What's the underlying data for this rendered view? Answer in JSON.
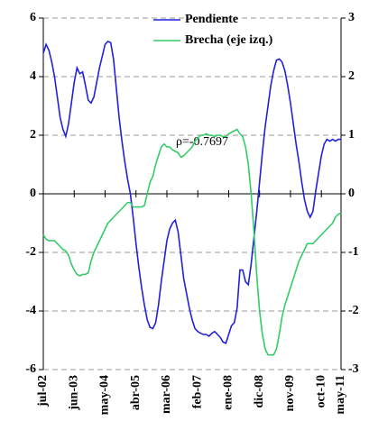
{
  "chart_data": {
    "type": "line",
    "annotation": "ρ=-0.7697",
    "categories": [
      "jul-02",
      null,
      null,
      null,
      null,
      null,
      null,
      null,
      null,
      null,
      null,
      "jun-03",
      null,
      null,
      null,
      null,
      null,
      null,
      null,
      null,
      null,
      null,
      "may-04",
      null,
      null,
      null,
      null,
      null,
      null,
      null,
      null,
      null,
      null,
      "abr-05",
      null,
      null,
      null,
      null,
      null,
      null,
      null,
      null,
      null,
      null,
      "mar-06",
      null,
      null,
      null,
      null,
      null,
      null,
      null,
      null,
      null,
      null,
      "feb-07",
      null,
      null,
      null,
      null,
      null,
      null,
      null,
      null,
      null,
      null,
      "ene-08",
      null,
      null,
      null,
      null,
      null,
      null,
      null,
      null,
      null,
      null,
      "dic-08",
      null,
      null,
      null,
      null,
      null,
      null,
      null,
      null,
      null,
      null,
      "nov-09",
      null,
      null,
      null,
      null,
      null,
      null,
      null,
      null,
      null,
      null,
      "oct-10",
      null,
      null,
      null,
      null,
      null,
      null,
      "may-11"
    ],
    "series": [
      {
        "name": "Pendiente",
        "color": "#2020e0",
        "axis": "y2",
        "values": [
          2.4,
          2.55,
          2.45,
          2.25,
          2,
          1.65,
          1.3,
          1.1,
          0.98,
          1.2,
          1.55,
          1.9,
          2.15,
          2.05,
          2.08,
          1.85,
          1.6,
          1.55,
          1.65,
          1.9,
          2.15,
          2.35,
          2.55,
          2.6,
          2.58,
          2.3,
          1.8,
          1.3,
          0.9,
          0.55,
          0.25,
          0,
          -0.4,
          -0.85,
          -1.25,
          -1.6,
          -1.9,
          -2.15,
          -2.28,
          -2.3,
          -2.2,
          -1.9,
          -1.5,
          -1.15,
          -0.8,
          -0.6,
          -0.5,
          -0.45,
          -0.65,
          -1.05,
          -1.45,
          -1.7,
          -1.95,
          -2.15,
          -2.3,
          -2.35,
          -2.38,
          -2.4,
          -2.4,
          -2.43,
          -2.38,
          -2.35,
          -2.4,
          -2.45,
          -2.53,
          -2.55,
          -2.4,
          -2.25,
          -2.2,
          -1.95,
          -1.3,
          -1.3,
          -1.5,
          -1.55,
          -1.2,
          -0.75,
          -0.3,
          0.2,
          0.7,
          1.15,
          1.5,
          1.85,
          2.1,
          2.28,
          2.3,
          2.25,
          2.1,
          1.85,
          1.55,
          1.2,
          0.85,
          0.55,
          0.2,
          -0.1,
          -0.3,
          -0.4,
          -0.3,
          0.05,
          0.35,
          0.65,
          0.85,
          0.93,
          0.9,
          0.93,
          0.9,
          0.93,
          0.93
        ]
      },
      {
        "name": "Brecha (eje izq.)",
        "color": "#33cc66",
        "values": [
          -1.4,
          -1.55,
          -1.6,
          -1.6,
          -1.6,
          -1.7,
          -1.8,
          -1.9,
          -1.95,
          -2.1,
          -2.4,
          -2.6,
          -2.75,
          -2.8,
          -2.75,
          -2.75,
          -2.7,
          -2.3,
          -2.0,
          -1.8,
          -1.6,
          -1.4,
          -1.2,
          -1.0,
          -0.9,
          -0.8,
          -0.7,
          -0.6,
          -0.5,
          -0.4,
          -0.3,
          -0.3,
          -0.45,
          -0.45,
          -0.45,
          -0.45,
          -0.4,
          0,
          0.4,
          0.6,
          1.0,
          1.3,
          1.6,
          1.7,
          1.6,
          1.6,
          1.5,
          1.45,
          1.4,
          1.25,
          1.3,
          1.4,
          1.5,
          1.6,
          1.8,
          1.9,
          2.0,
          2.0,
          2.05,
          2.0,
          2.0,
          1.95,
          2.0,
          2.0,
          1.95,
          1.95,
          2.05,
          2.1,
          2.15,
          2.2,
          2.05,
          1.95,
          1.6,
          1.0,
          0.0,
          -1.3,
          -2.8,
          -4.0,
          -4.8,
          -5.3,
          -5.5,
          -5.5,
          -5.5,
          -5.3,
          -4.8,
          -4.2,
          -3.8,
          -3.5,
          -3.2,
          -2.9,
          -2.6,
          -2.3,
          -2.1,
          -1.9,
          -1.7,
          -1.7,
          -1.7,
          -1.6,
          -1.5,
          -1.4,
          -1.3,
          -1.2,
          -1.1,
          -1.0,
          -0.8,
          -0.7,
          -0.65
        ]
      }
    ],
    "ylim": [
      -6,
      6
    ],
    "yticks": [
      -6,
      -4,
      -2,
      0,
      2,
      4,
      6
    ],
    "y2lim": [
      -3,
      3
    ],
    "y2ticks": [
      -3,
      -2,
      -1,
      0,
      1,
      2,
      3
    ],
    "grid": true
  }
}
